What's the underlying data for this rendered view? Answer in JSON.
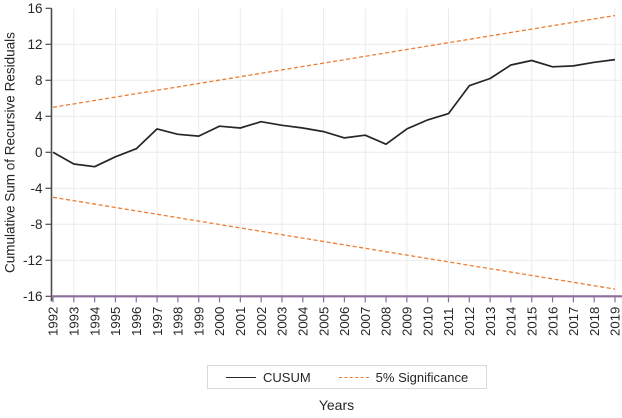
{
  "figure": {
    "background": "#ffffff",
    "colors": {
      "cusum_line": "#262626",
      "significance_line": "#ED7D31",
      "left_axis": "#4d4d4d",
      "bottom_axis": "#8C6E9B",
      "gridline": "#ebebeb",
      "tick_label_text": "#262626",
      "legend_border": "#d9d9d9"
    }
  },
  "legend": {
    "items": [
      {
        "label": "CUSUM",
        "swatch": "black-solid-line"
      },
      {
        "label": "5% Significance",
        "swatch": "orange-dashed-line"
      }
    ],
    "position": "bottom-center"
  },
  "chart_data": {
    "type": "line",
    "title": "",
    "xlabel": "Years",
    "ylabel": "Cumulative Sum of Recursive Residuals",
    "ylim": [
      -16,
      16
    ],
    "xlim": [
      1992,
      2019
    ],
    "yticks": [
      16,
      12,
      8,
      4,
      0,
      -4,
      -8,
      -12,
      -16
    ],
    "xticks": [
      "1992",
      "1993",
      "1994",
      "1995",
      "1996",
      "1997",
      "1998",
      "1999",
      "2000",
      "2001",
      "2002",
      "2003",
      "2004",
      "2005",
      "2006",
      "2007",
      "2008",
      "2009",
      "2010",
      "2011",
      "2012",
      "2013",
      "2014",
      "2015",
      "2016",
      "2017",
      "2018",
      "2019"
    ],
    "x_tick_label_rotation_deg": 90,
    "grid": {
      "horizontal_values": [
        12,
        8,
        4,
        0,
        -4,
        -8,
        -12
      ],
      "vertical_years": [
        1993,
        1995,
        1997,
        1999,
        2001,
        2003,
        2005,
        2007,
        2009,
        2011,
        2013,
        2015,
        2017,
        2019
      ]
    },
    "legend_position": "bottom",
    "series": [
      {
        "name": "CUSUM",
        "color": "#262626",
        "dash": "solid",
        "width": 1.7,
        "x": [
          1992,
          1993,
          1994,
          1995,
          1996,
          1997,
          1998,
          1999,
          2000,
          2001,
          2002,
          2003,
          2004,
          2005,
          2006,
          2007,
          2008,
          2009,
          2010,
          2011,
          2012,
          2013,
          2014,
          2015,
          2016,
          2017,
          2018,
          2019
        ],
        "y": [
          0.0,
          -1.3,
          -1.6,
          -0.5,
          0.4,
          2.6,
          2.0,
          1.8,
          2.9,
          2.7,
          3.4,
          3.0,
          2.7,
          2.3,
          1.6,
          1.9,
          0.9,
          2.6,
          3.6,
          4.3,
          7.4,
          8.2,
          9.7,
          10.2,
          9.5,
          9.6,
          10.0,
          10.3
        ]
      },
      {
        "name": "5% Significance (upper bound)",
        "color": "#ED7D31",
        "dash": "dashed",
        "width": 1.3,
        "x": [
          1992,
          2019
        ],
        "y": [
          5.0,
          15.2
        ]
      },
      {
        "name": "5% Significance (lower bound)",
        "color": "#ED7D31",
        "dash": "dashed",
        "width": 1.3,
        "x": [
          1992,
          2019
        ],
        "y": [
          -5.0,
          -15.2
        ]
      }
    ]
  }
}
